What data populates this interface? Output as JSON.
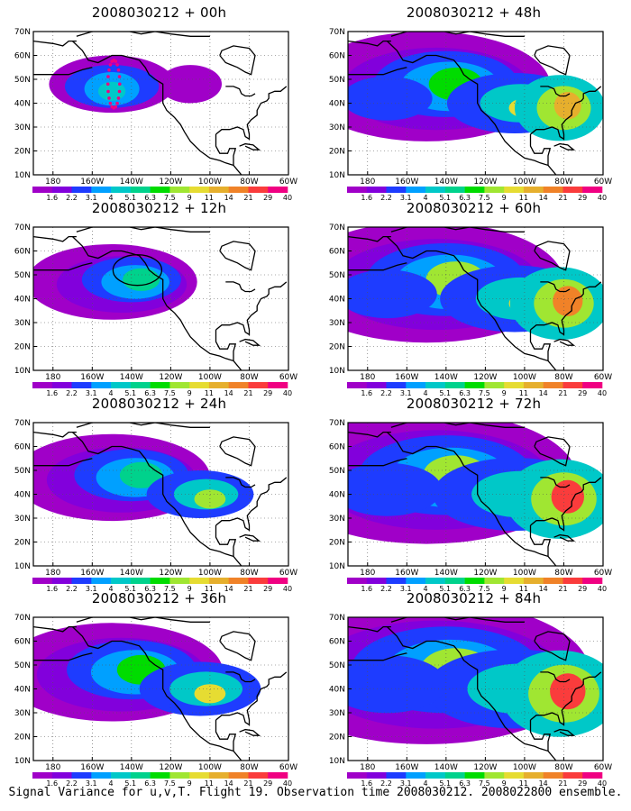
{
  "panels": [
    {
      "title": "2008030212 + 00h",
      "level": 1,
      "col": 0,
      "row": 0,
      "marks": "dots"
    },
    {
      "title": "2008030212 + 12h",
      "level": 2,
      "col": 0,
      "row": 1,
      "marks": "circle"
    },
    {
      "title": "2008030212 + 24h",
      "level": 3,
      "col": 0,
      "row": 2,
      "marks": ""
    },
    {
      "title": "2008030212 + 36h",
      "level": 4,
      "col": 0,
      "row": 3,
      "marks": ""
    },
    {
      "title": "2008030212 + 48h",
      "level": 5,
      "col": 1,
      "row": 0,
      "marks": ""
    },
    {
      "title": "2008030212 + 60h",
      "level": 6,
      "col": 1,
      "row": 1,
      "marks": ""
    },
    {
      "title": "2008030212 + 72h",
      "level": 7,
      "col": 1,
      "row": 2,
      "marks": ""
    },
    {
      "title": "2008030212 + 84h",
      "level": 8,
      "col": 1,
      "row": 3,
      "marks": ""
    }
  ],
  "axes": {
    "x_ticks": [
      "180",
      "160W",
      "140W",
      "120W",
      "100W",
      "80W",
      "60W"
    ],
    "y_ticks": [
      "10N",
      "20N",
      "30N",
      "40N",
      "50N",
      "60N",
      "70N"
    ],
    "lon_range": [
      -190,
      -60
    ],
    "lat_range": [
      10,
      70
    ],
    "grid": "dotted"
  },
  "colorbar": {
    "labels": [
      "1.6",
      "2.2",
      "3.1",
      "4",
      "5.1",
      "6.3",
      "7.5",
      "9",
      "11",
      "14",
      "21",
      "29",
      "40"
    ],
    "colors": [
      "#a000c8",
      "#8200dc",
      "#1e3cff",
      "#00a0ff",
      "#00c8c8",
      "#00d28c",
      "#00dc00",
      "#a0e632",
      "#e6dc32",
      "#e6af2d",
      "#f08228",
      "#fa3c3c",
      "#f00082"
    ]
  },
  "caption": "Signal Variance for u,v,T. Flight 19. Observation time 2008030212. 2008022800 ensemble."
}
